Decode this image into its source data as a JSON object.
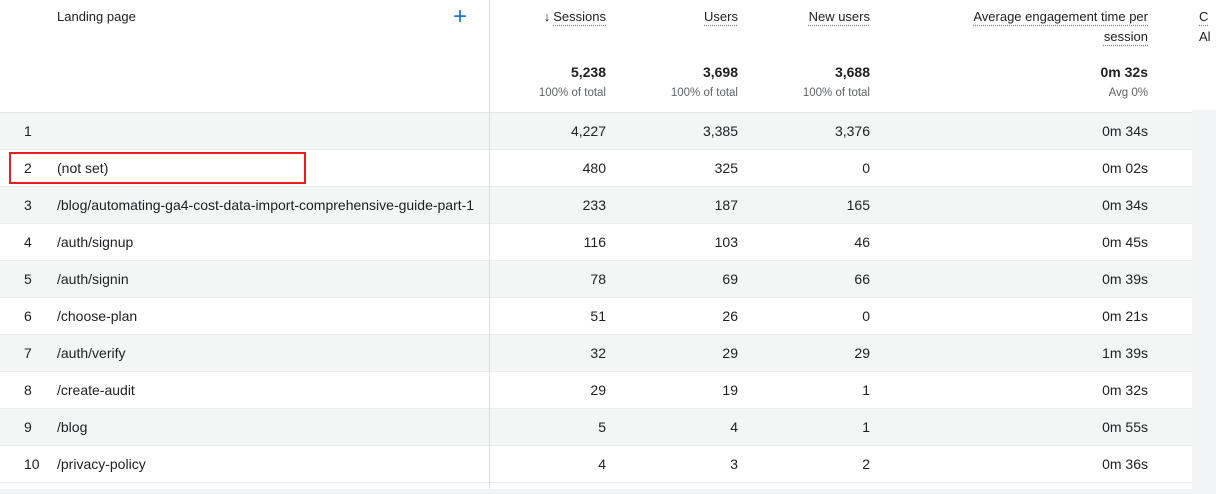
{
  "colors": {
    "accent_blue": "#1a73e8",
    "highlight_red": "#ee1c1c",
    "row_stripe": "#f4f5f5",
    "divider_gray": "#dadce0",
    "text_primary": "#202124",
    "text_secondary": "#5f6368",
    "edge_gray": "#f1f3f4"
  },
  "table": {
    "dimension_header": "Landing page",
    "add_dimension_label": "+",
    "sort_icon": "↓",
    "columns": [
      {
        "label": "Sessions"
      },
      {
        "label": "Users"
      },
      {
        "label": "New users"
      },
      {
        "label": "Average engagement time per session"
      }
    ],
    "truncated_header": {
      "line1": "C",
      "line2": "Al"
    },
    "totals": {
      "sessions": "5,238",
      "sessions_sub": "100% of total",
      "users": "3,698",
      "users_sub": "100% of total",
      "new_users": "3,688",
      "new_users_sub": "100% of total",
      "avg_engagement": "0m 32s",
      "avg_engagement_sub": "Avg 0%"
    },
    "rows": [
      {
        "index": "1",
        "landing_page": "",
        "sessions": "4,227",
        "users": "3,385",
        "new_users": "3,376",
        "avg_engagement": "0m 34s"
      },
      {
        "index": "2",
        "landing_page": "(not set)",
        "sessions": "480",
        "users": "325",
        "new_users": "0",
        "avg_engagement": "0m 02s"
      },
      {
        "index": "3",
        "landing_page": "/blog/automating-ga4-cost-data-import-comprehensive-guide-part-1",
        "sessions": "233",
        "users": "187",
        "new_users": "165",
        "avg_engagement": "0m 34s"
      },
      {
        "index": "4",
        "landing_page": "/auth/signup",
        "sessions": "116",
        "users": "103",
        "new_users": "46",
        "avg_engagement": "0m 45s"
      },
      {
        "index": "5",
        "landing_page": "/auth/signin",
        "sessions": "78",
        "users": "69",
        "new_users": "66",
        "avg_engagement": "0m 39s"
      },
      {
        "index": "6",
        "landing_page": "/choose-plan",
        "sessions": "51",
        "users": "26",
        "new_users": "0",
        "avg_engagement": "0m 21s"
      },
      {
        "index": "7",
        "landing_page": "/auth/verify",
        "sessions": "32",
        "users": "29",
        "new_users": "29",
        "avg_engagement": "1m 39s"
      },
      {
        "index": "8",
        "landing_page": "/create-audit",
        "sessions": "29",
        "users": "19",
        "new_users": "1",
        "avg_engagement": "0m 32s"
      },
      {
        "index": "9",
        "landing_page": "/blog",
        "sessions": "5",
        "users": "4",
        "new_users": "1",
        "avg_engagement": "0m 55s"
      },
      {
        "index": "10",
        "landing_page": "/privacy-policy",
        "sessions": "4",
        "users": "3",
        "new_users": "2",
        "avg_engagement": "0m 36s"
      }
    ]
  }
}
